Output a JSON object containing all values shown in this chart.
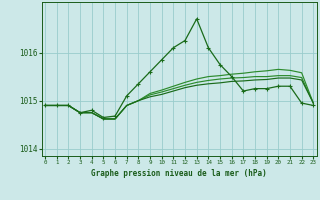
{
  "title": "Graphe pression niveau de la mer (hPa)",
  "xlabel_hours": [
    0,
    1,
    2,
    3,
    4,
    5,
    6,
    7,
    8,
    9,
    10,
    11,
    12,
    13,
    14,
    15,
    16,
    17,
    18,
    19,
    20,
    21,
    22,
    23
  ],
  "line1": [
    1014.9,
    1014.9,
    1014.9,
    1014.75,
    1014.8,
    1014.65,
    1014.68,
    1015.1,
    1015.35,
    1015.6,
    1015.85,
    1016.1,
    1016.25,
    1016.7,
    1016.1,
    1015.75,
    1015.5,
    1015.2,
    1015.25,
    1015.25,
    1015.3,
    1015.3,
    1014.95,
    1014.9
  ],
  "line2": [
    1014.9,
    1014.9,
    1014.9,
    1014.75,
    1014.75,
    1014.62,
    1014.62,
    1014.9,
    1015.0,
    1015.15,
    1015.22,
    1015.3,
    1015.38,
    1015.45,
    1015.5,
    1015.52,
    1015.55,
    1015.57,
    1015.6,
    1015.62,
    1015.65,
    1015.63,
    1015.58,
    1014.95
  ],
  "line3": [
    1014.9,
    1014.9,
    1014.9,
    1014.75,
    1014.75,
    1014.62,
    1014.62,
    1014.9,
    1015.0,
    1015.12,
    1015.18,
    1015.25,
    1015.32,
    1015.38,
    1015.42,
    1015.45,
    1015.47,
    1015.48,
    1015.5,
    1015.5,
    1015.52,
    1015.52,
    1015.48,
    1014.95
  ],
  "line4": [
    1014.9,
    1014.9,
    1014.9,
    1014.75,
    1014.75,
    1014.62,
    1014.62,
    1014.9,
    1015.0,
    1015.08,
    1015.13,
    1015.2,
    1015.27,
    1015.32,
    1015.35,
    1015.37,
    1015.4,
    1015.41,
    1015.43,
    1015.44,
    1015.47,
    1015.47,
    1015.43,
    1014.95
  ],
  "line_color_main": "#1a6b1a",
  "line_color_light": "#2d8b2d",
  "bg_color": "#cce8e8",
  "grid_color": "#99cccc",
  "ylim": [
    1013.85,
    1017.05
  ],
  "yticks": [
    1014,
    1015,
    1016
  ],
  "text_color": "#1a5c1a",
  "marker": "+",
  "marker_size": 3.0
}
